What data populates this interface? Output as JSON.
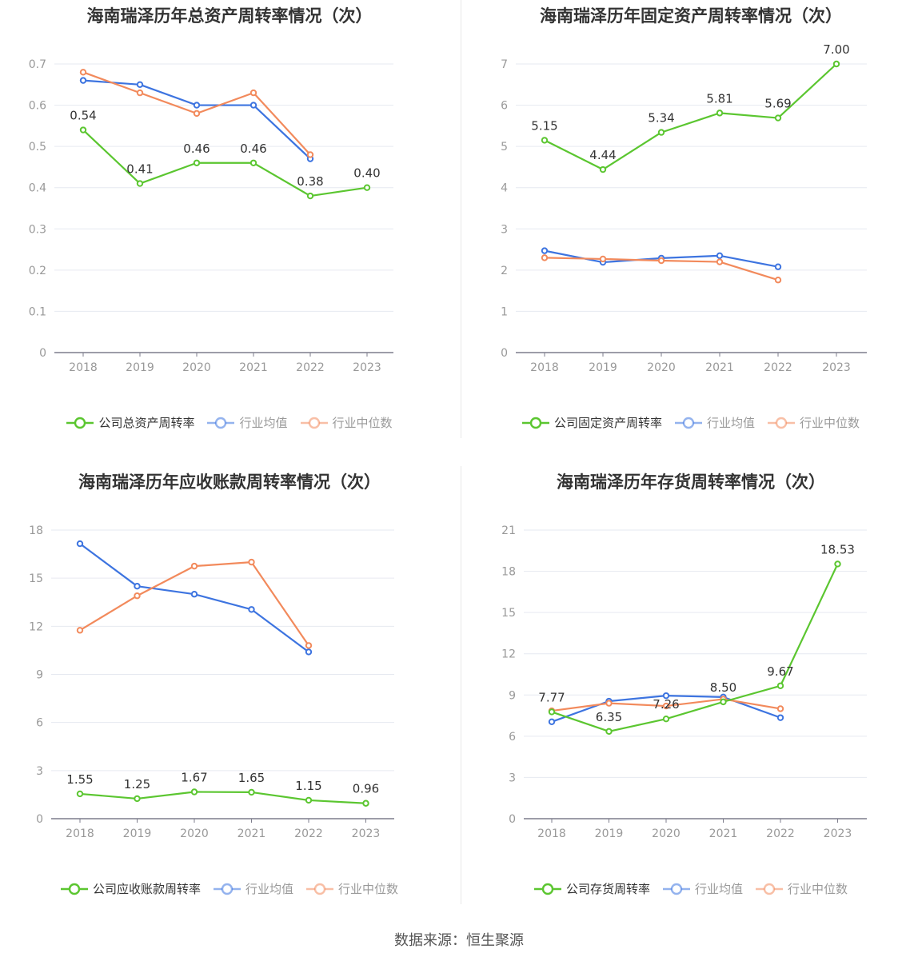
{
  "source_text": "数据来源：恒生聚源",
  "colors": {
    "company": "#5bc630",
    "average": "#3d74e0",
    "median": "#f28a5c"
  },
  "chart_data": [
    {
      "type": "line",
      "title": "海南瑞泽历年总资产周转率情况（次）",
      "categories": [
        "2018",
        "2019",
        "2020",
        "2021",
        "2022",
        "2023"
      ],
      "yticks": [
        "0",
        "0.1",
        "0.2",
        "0.3",
        "0.4",
        "0.5",
        "0.6",
        "0.7"
      ],
      "ylim": [
        0,
        0.7
      ],
      "series": [
        {
          "name": "公司总资产周转率",
          "color": "#5bc630",
          "values": [
            0.54,
            0.41,
            0.46,
            0.46,
            0.38,
            0.4
          ],
          "labels": [
            "0.54",
            "0.41",
            "0.46",
            "0.46",
            "0.38",
            "0.40"
          ]
        },
        {
          "name": "行业均值",
          "color": "#3d74e0",
          "values": [
            0.66,
            0.65,
            0.6,
            0.6,
            0.47,
            null
          ]
        },
        {
          "name": "行业中位数",
          "color": "#f28a5c",
          "values": [
            0.68,
            0.63,
            0.58,
            0.63,
            0.48,
            null
          ]
        }
      ]
    },
    {
      "type": "line",
      "title": "海南瑞泽历年固定资产周转率情况（次）",
      "categories": [
        "2018",
        "2019",
        "2020",
        "2021",
        "2022",
        "2023"
      ],
      "yticks": [
        "0",
        "1",
        "2",
        "3",
        "4",
        "5",
        "6",
        "7"
      ],
      "ylim": [
        0,
        7
      ],
      "series": [
        {
          "name": "公司固定资产周转率",
          "color": "#5bc630",
          "values": [
            5.15,
            4.44,
            5.34,
            5.81,
            5.69,
            7.0
          ],
          "labels": [
            "5.15",
            "4.44",
            "5.34",
            "5.81",
            "5.69",
            "7.00"
          ]
        },
        {
          "name": "行业均值",
          "color": "#3d74e0",
          "values": [
            2.47,
            2.19,
            2.29,
            2.35,
            2.08,
            null
          ]
        },
        {
          "name": "行业中位数",
          "color": "#f28a5c",
          "values": [
            2.3,
            2.27,
            2.23,
            2.2,
            1.76,
            null
          ]
        }
      ]
    },
    {
      "type": "line",
      "title": "海南瑞泽历年应收账款周转率情况（次）",
      "categories": [
        "2018",
        "2019",
        "2020",
        "2021",
        "2022",
        "2023"
      ],
      "yticks": [
        "0",
        "3",
        "6",
        "9",
        "12",
        "15",
        "18"
      ],
      "ylim": [
        0,
        18
      ],
      "series": [
        {
          "name": "公司应收账款周转率",
          "color": "#5bc630",
          "values": [
            1.55,
            1.25,
            1.67,
            1.65,
            1.15,
            0.96
          ],
          "labels": [
            "1.55",
            "1.25",
            "1.67",
            "1.65",
            "1.15",
            "0.96"
          ]
        },
        {
          "name": "行业均值",
          "color": "#3d74e0",
          "values": [
            17.15,
            14.5,
            14.0,
            13.05,
            10.4,
            null
          ]
        },
        {
          "name": "行业中位数",
          "color": "#f28a5c",
          "values": [
            11.75,
            13.9,
            15.75,
            16.0,
            10.8,
            null
          ]
        }
      ]
    },
    {
      "type": "line",
      "title": "海南瑞泽历年存货周转率情况（次）",
      "categories": [
        "2018",
        "2019",
        "2020",
        "2021",
        "2022",
        "2023"
      ],
      "yticks": [
        "0",
        "3",
        "6",
        "9",
        "12",
        "15",
        "18",
        "21"
      ],
      "ylim": [
        0,
        21
      ],
      "series": [
        {
          "name": "公司存货周转率",
          "color": "#5bc630",
          "values": [
            7.77,
            6.35,
            7.26,
            8.5,
            9.67,
            18.53
          ],
          "labels": [
            "7.77",
            "6.35",
            "7.26",
            "8.50",
            "9.67",
            "18.53"
          ]
        },
        {
          "name": "行业均值",
          "color": "#3d74e0",
          "values": [
            7.05,
            8.55,
            8.95,
            8.85,
            7.35,
            null
          ]
        },
        {
          "name": "行业中位数",
          "color": "#f28a5c",
          "values": [
            7.85,
            8.4,
            8.2,
            8.7,
            8.0,
            null
          ]
        }
      ]
    }
  ]
}
